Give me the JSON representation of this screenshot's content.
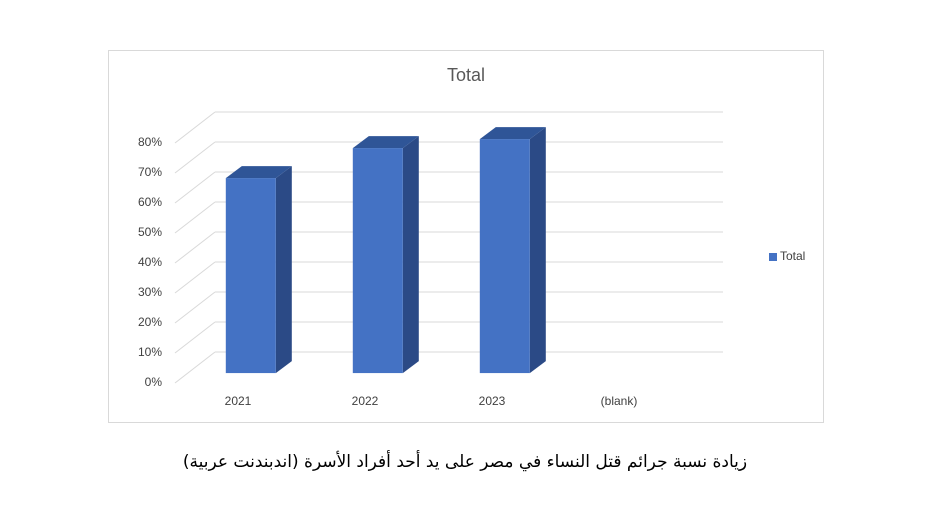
{
  "chart_data": {
    "type": "bar3d",
    "title": "Total",
    "categories": [
      "2021",
      "2022",
      "2023",
      "(blank)"
    ],
    "series": [
      {
        "name": "Total",
        "color": "#4472c4",
        "values": [
          65,
          75,
          78,
          null
        ]
      }
    ],
    "ylim": [
      0,
      80
    ],
    "yticks": [
      {
        "value": 0,
        "label": "0%"
      },
      {
        "value": 10,
        "label": "10%"
      },
      {
        "value": 20,
        "label": "20%"
      },
      {
        "value": 30,
        "label": "30%"
      },
      {
        "value": 40,
        "label": "40%"
      },
      {
        "value": 50,
        "label": "50%"
      },
      {
        "value": 60,
        "label": "60%"
      },
      {
        "value": 70,
        "label": "70%"
      },
      {
        "value": 80,
        "label": "80%"
      }
    ],
    "grid": true,
    "legend": "right"
  },
  "caption": "زيادة نسبة جرائم قتل النساء في مصر على يد أحد أفراد الأسرة (اندبندنت عربية)"
}
